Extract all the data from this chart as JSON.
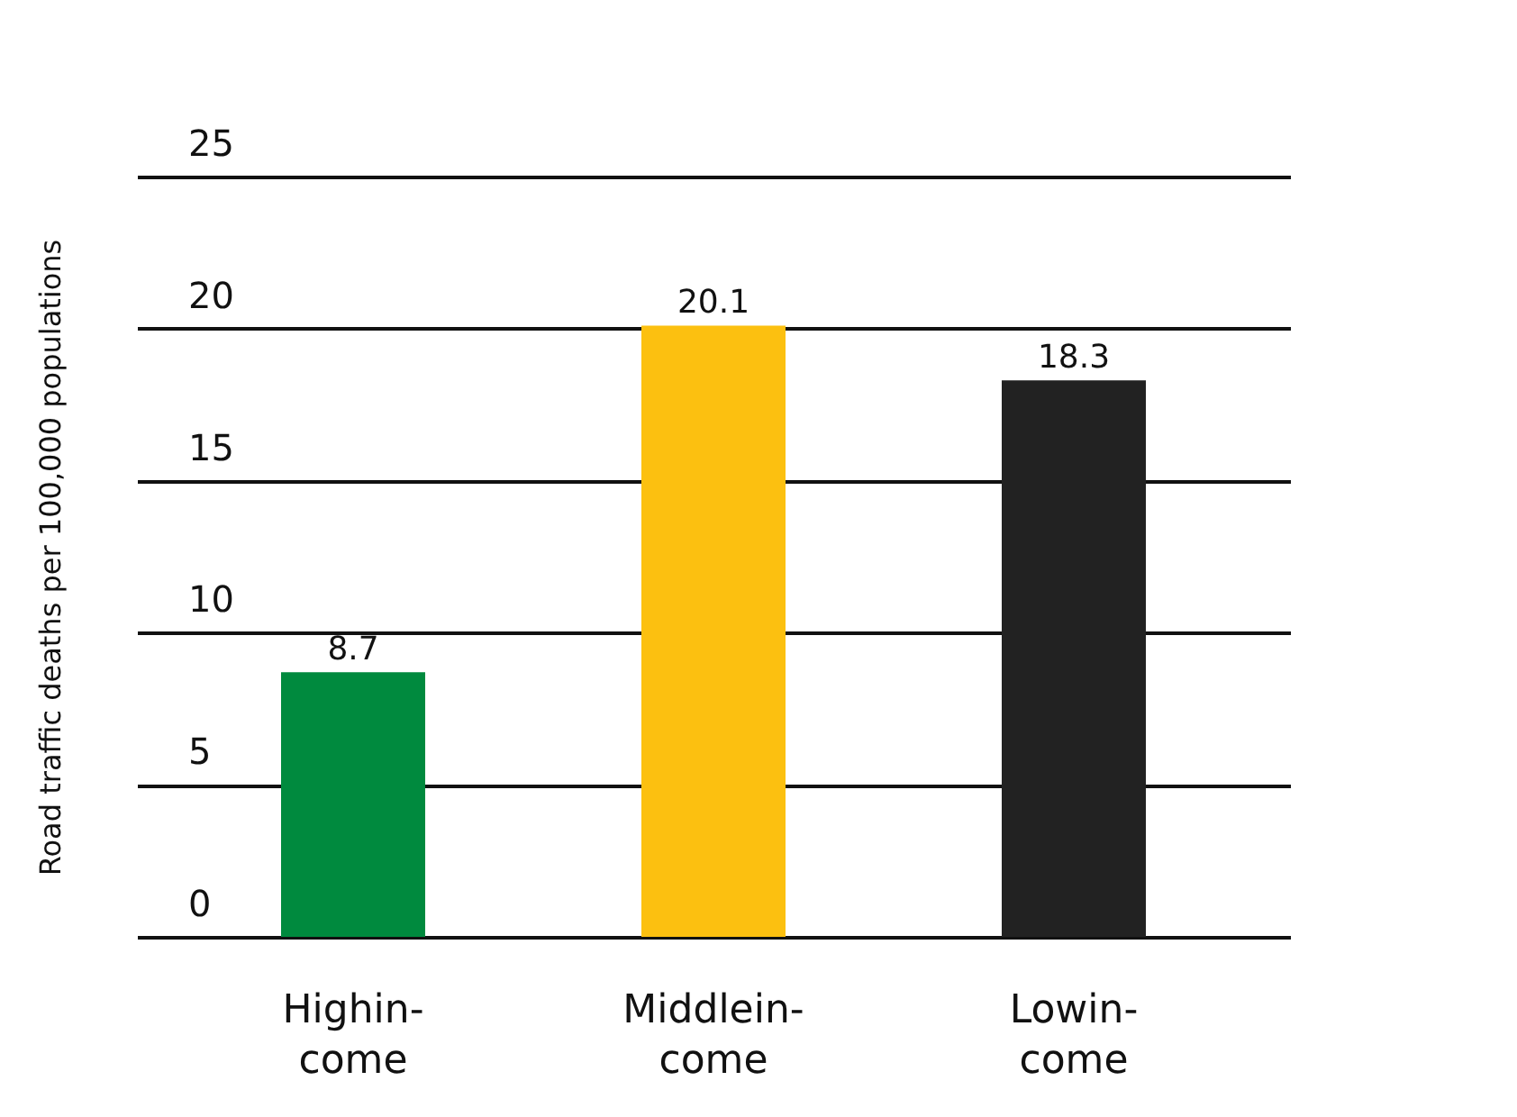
{
  "chart_data": {
    "type": "bar",
    "ylabel": "Road traffic deaths per 100,000 populations",
    "categories": [
      "Highin-\ncome",
      "Middlein-\ncome",
      "Lowin-\ncome"
    ],
    "values": [
      8.7,
      20.1,
      18.3
    ],
    "colors": [
      "#008a3e",
      "#fcc010",
      "#222222"
    ],
    "ylim": [
      0,
      25
    ],
    "yticks": [
      0,
      5,
      10,
      15,
      20,
      25
    ],
    "grid": "y",
    "data_labels": true
  }
}
